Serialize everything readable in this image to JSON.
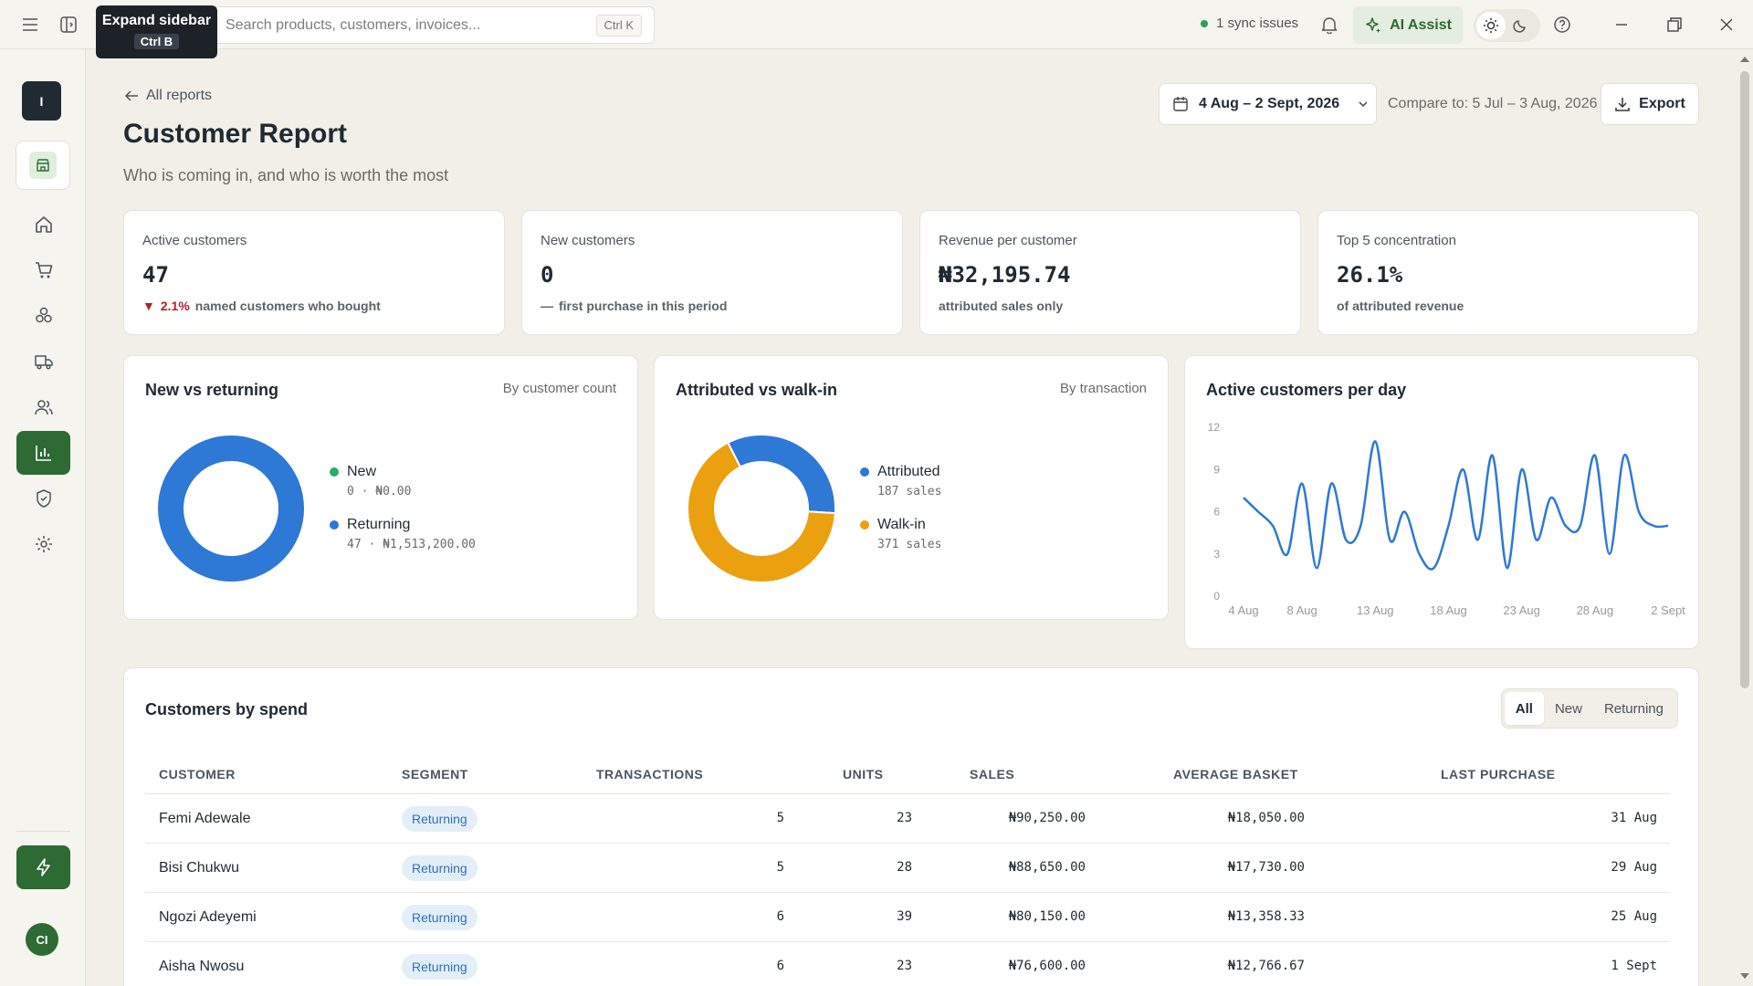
{
  "topbar": {
    "search_placeholder": "Search products, customers, invoices...",
    "search_shortcut": "Ctrl K",
    "tooltip_title": "Expand sidebar",
    "tooltip_shortcut": "Ctrl B",
    "sync_status": "1 sync issues",
    "ai_label": "AI Assist"
  },
  "sidebar": {
    "org_initial": "I",
    "avatar_initials": "CI",
    "nav": [
      "home-icon",
      "cart-icon",
      "boxes-icon",
      "truck-icon",
      "users-icon",
      "chart-bar-icon",
      "shield-icon",
      "gear-icon"
    ],
    "active": "chart-bar-icon"
  },
  "header": {
    "back_label": "All reports",
    "title": "Customer Report",
    "subtitle": "Who is coming in, and who is worth the most",
    "date_range": "4 Aug – 2 Sept, 2026",
    "compare": "Compare to: 5 Jul – 3 Aug, 2026",
    "export_label": "Export"
  },
  "kpis": [
    {
      "label": "Active customers",
      "value": "47",
      "delta": "2.1%",
      "note": "named customers who bought"
    },
    {
      "label": "New customers",
      "value": "0",
      "delta": "—",
      "note": "first purchase in this period"
    },
    {
      "label": "Revenue per customer",
      "value": "₦32,195.74",
      "note": "attributed sales only"
    },
    {
      "label": "Top 5 concentration",
      "value": "26.1%",
      "note": "of attributed revenue"
    }
  ],
  "colors": {
    "accent": "#2d6a34",
    "blue": "#2e78d6",
    "orange": "#eba10f",
    "green": "#2eaa6a"
  },
  "new_vs_returning": {
    "title": "New vs returning",
    "hint": "By customer count",
    "items": [
      {
        "name": "New",
        "sub": "0 · ₦0.00",
        "value": 0
      },
      {
        "name": "Returning",
        "sub": "47 · ₦1,513,200.00",
        "value": 47
      }
    ]
  },
  "attributed": {
    "title": "Attributed vs walk-in",
    "hint": "By transaction",
    "items": [
      {
        "name": "Attributed",
        "sub": "187 sales",
        "value": 187
      },
      {
        "name": "Walk-in",
        "sub": "371 sales",
        "value": 371
      }
    ]
  },
  "chart_data": {
    "type": "line",
    "title": "Active customers per day",
    "ylim": [
      0,
      12
    ],
    "yticks": [
      "0",
      "3",
      "6",
      "9",
      "12"
    ],
    "xticks": [
      "4 Aug",
      "8 Aug",
      "13 Aug",
      "18 Aug",
      "23 Aug",
      "28 Aug",
      "2 Sept"
    ],
    "x": [
      "4 Aug",
      "5 Aug",
      "6 Aug",
      "7 Aug",
      "8 Aug",
      "9 Aug",
      "10 Aug",
      "11 Aug",
      "12 Aug",
      "13 Aug",
      "14 Aug",
      "15 Aug",
      "16 Aug",
      "17 Aug",
      "18 Aug",
      "19 Aug",
      "20 Aug",
      "21 Aug",
      "22 Aug",
      "23 Aug",
      "24 Aug",
      "25 Aug",
      "26 Aug",
      "27 Aug",
      "28 Aug",
      "29 Aug",
      "30 Aug",
      "31 Aug",
      "1 Sept",
      "2 Sept"
    ],
    "values": [
      7,
      6,
      5,
      3,
      8,
      2,
      8,
      4,
      5,
      11,
      4,
      6,
      3,
      2,
      5,
      9,
      4,
      10,
      2,
      9,
      4,
      7,
      5,
      5,
      10,
      3,
      10,
      6,
      5,
      5
    ],
    "grid": false
  },
  "table": {
    "title": "Customers by spend",
    "filters": [
      "All",
      "New",
      "Returning"
    ],
    "active_filter": "All",
    "columns": [
      "CUSTOMER",
      "SEGMENT",
      "TRANSACTIONS",
      "UNITS",
      "SALES",
      "AVERAGE BASKET",
      "LAST PURCHASE"
    ],
    "rows": [
      {
        "customer": "Femi Adewale",
        "segment": "Returning",
        "transactions": "5",
        "units": "23",
        "sales": "₦90,250.00",
        "avg": "₦18,050.00",
        "last": "31 Aug"
      },
      {
        "customer": "Bisi Chukwu",
        "segment": "Returning",
        "transactions": "5",
        "units": "28",
        "sales": "₦88,650.00",
        "avg": "₦17,730.00",
        "last": "29 Aug"
      },
      {
        "customer": "Ngozi Adeyemi",
        "segment": "Returning",
        "transactions": "6",
        "units": "39",
        "sales": "₦80,150.00",
        "avg": "₦13,358.33",
        "last": "25 Aug"
      },
      {
        "customer": "Aisha Nwosu",
        "segment": "Returning",
        "transactions": "6",
        "units": "23",
        "sales": "₦76,600.00",
        "avg": "₦12,766.67",
        "last": "1 Sept"
      }
    ]
  }
}
